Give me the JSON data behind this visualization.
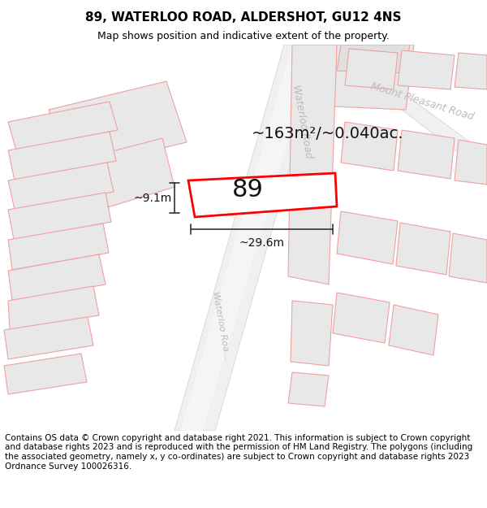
{
  "title": "89, WATERLOO ROAD, ALDERSHOT, GU12 4NS",
  "subtitle": "Map shows position and indicative extent of the property.",
  "footer": "Contains OS data © Crown copyright and database right 2021. This information is subject to Crown copyright and database rights 2023 and is reproduced with the permission of HM Land Registry. The polygons (including the associated geometry, namely x, y co-ordinates) are subject to Crown copyright and database rights 2023 Ordnance Survey 100026316.",
  "area_text": "~163m²/~0.040ac.",
  "width_text": "~29.6m",
  "height_text": "~9.1m",
  "number_text": "89",
  "map_bg": "#f7f7f7",
  "building_fill": "#e0e0e0",
  "building_edge": "#c8c8c8",
  "road_fill": "#ffffff",
  "road_edge": "#cccccc",
  "parcel_line": "#f0a0a0",
  "highlight_color": "#ff0000",
  "road_label_color": "#bbbbbb",
  "dim_color": "#333333",
  "title_fontsize": 11,
  "subtitle_fontsize": 9,
  "footer_fontsize": 7.5,
  "area_fontsize": 14,
  "number_fontsize": 22,
  "dim_fontsize": 10,
  "road_label_fontsize": 9
}
